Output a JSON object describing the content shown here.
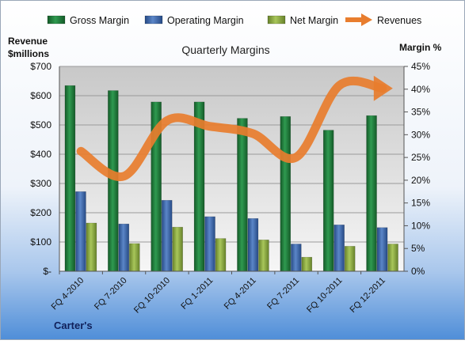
{
  "chart_data": {
    "type": "bar",
    "title": "Quarterly Margins",
    "company": "Carter's",
    "y_left_label_line1": "Revenue",
    "y_left_label_line2": "$millions",
    "y_right_label": "Margin %",
    "categories": [
      "FQ 4-2010",
      "FQ 7-2010",
      "FQ 10-2010",
      "FQ 1-2011",
      "FQ 4-2011",
      "FQ 7-2011",
      "FQ 10-2011",
      "FQ 12-2011"
    ],
    "left_ticks": [
      "$-",
      "$100",
      "$200",
      "$300",
      "$400",
      "$500",
      "$600",
      "$700"
    ],
    "right_ticks": [
      "0%",
      "5%",
      "10%",
      "15%",
      "20%",
      "25%",
      "30%",
      "35%",
      "40%",
      "45%"
    ],
    "ylim_left": [
      0,
      700
    ],
    "ylim_right": [
      0,
      45
    ],
    "grid": true,
    "legend_position": "top",
    "series": [
      {
        "name": "Gross Margin",
        "axis": "right",
        "kind": "bar",
        "color": "#1f7a3a",
        "values": [
          40.8,
          39.7,
          37.2,
          37.2,
          33.6,
          34.0,
          31.0,
          34.2
        ]
      },
      {
        "name": "Operating Margin",
        "axis": "right",
        "kind": "bar",
        "color": "#3a64a8",
        "values": [
          17.5,
          10.4,
          15.6,
          12.0,
          11.6,
          6.0,
          10.2,
          9.6
        ]
      },
      {
        "name": "Net Margin",
        "axis": "right",
        "kind": "bar",
        "color": "#8aa83c",
        "values": [
          10.6,
          6.1,
          9.7,
          7.2,
          6.9,
          3.1,
          5.5,
          6.0
        ]
      },
      {
        "name": "Revenues",
        "axis": "left",
        "kind": "line",
        "color": "#e87d2e",
        "values": [
          410,
          325,
          515,
          495,
          470,
          390,
          635,
          625
        ]
      }
    ]
  }
}
